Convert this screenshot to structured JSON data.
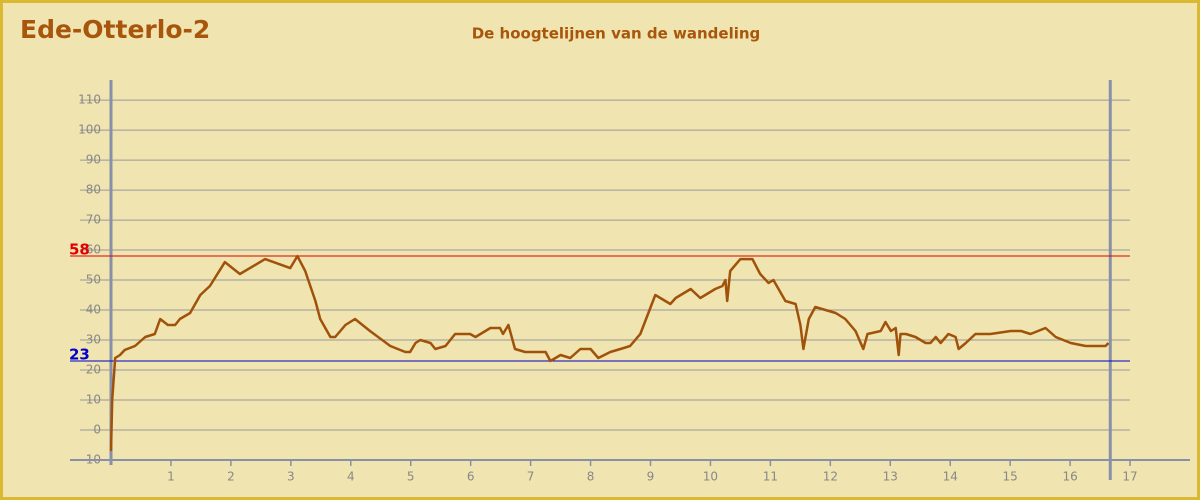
{
  "chart_data": {
    "type": "line",
    "title": "Ede-Otterlo-2",
    "subtitle": "De hoogtelijnen van de wandeling",
    "series": [
      {
        "color": "#a0520a",
        "x": [
          0,
          0.02,
          0.07,
          0.15,
          0.23,
          0.4,
          0.57,
          0.73,
          0.82,
          0.95,
          1.07,
          1.15,
          1.32,
          1.49,
          1.65,
          1.9,
          2.15,
          2.57,
          2.99,
          3.11,
          3.24,
          3.41,
          3.49,
          3.66,
          3.74,
          3.91,
          4.07,
          4.32,
          4.66,
          4.91,
          4.99,
          5.08,
          5.16,
          5.33,
          5.41,
          5.58,
          5.74,
          5.99,
          6.08,
          6.33,
          6.49,
          6.54,
          6.63,
          6.74,
          6.91,
          7.25,
          7.33,
          7.5,
          7.66,
          7.83,
          8.0,
          8.13,
          8.33,
          8.5,
          8.66,
          8.83,
          9.08,
          9.33,
          9.42,
          9.67,
          9.83,
          10.08,
          10.2,
          10.25,
          10.28,
          10.33,
          10.5,
          10.7,
          10.83,
          10.97,
          11.05,
          11.25,
          11.42,
          11.5,
          11.55,
          11.64,
          11.75,
          12.09,
          12.25,
          12.42,
          12.55,
          12.62,
          12.84,
          12.92,
          13.01,
          13.09,
          13.14,
          13.17,
          13.26,
          13.42,
          13.59,
          13.67,
          13.76,
          13.84,
          13.97,
          14.09,
          14.14,
          14.26,
          14.42,
          14.67,
          15.01,
          15.18,
          15.34,
          15.59,
          15.76,
          16.01,
          16.26,
          16.59,
          16.64
        ],
        "values": [
          -7,
          10,
          24,
          25,
          26.7,
          28,
          31,
          32,
          37,
          35,
          35,
          37,
          39,
          45,
          48,
          56,
          52,
          57,
          54,
          58,
          53,
          43,
          37,
          31,
          31,
          35,
          37,
          33,
          28,
          26,
          26,
          29,
          30,
          29,
          27,
          28,
          32,
          32,
          31,
          34,
          34,
          32,
          35,
          27,
          26,
          26,
          23,
          25,
          24,
          27,
          27,
          24,
          26,
          27,
          28,
          32,
          45,
          42,
          44,
          47,
          44,
          47,
          48,
          50,
          43,
          53,
          57,
          57,
          52,
          49,
          50,
          43,
          42,
          35,
          27,
          37,
          41,
          39,
          37,
          33,
          27,
          32,
          33,
          36,
          33,
          34,
          25,
          32,
          32,
          31,
          29,
          29,
          31,
          29,
          32,
          31,
          27,
          29,
          32,
          32,
          33,
          33,
          32,
          34,
          31,
          29,
          28,
          28,
          29
        ]
      }
    ],
    "reference_lines": [
      {
        "value": 58,
        "color": "#e00000"
      },
      {
        "value": 23,
        "color": "#0000cc"
      }
    ],
    "route_end": 16.67,
    "xlim": [
      0,
      18
    ],
    "xticks": [
      1,
      2,
      3,
      4,
      5,
      6,
      7,
      8,
      9,
      10,
      11,
      12,
      13,
      14,
      15,
      16,
      17
    ],
    "ylim": [
      -10,
      116.7
    ],
    "yticks": [
      -10,
      0,
      10,
      20,
      30,
      40,
      50,
      60,
      70,
      80,
      90,
      100,
      110
    ],
    "grid": true
  }
}
